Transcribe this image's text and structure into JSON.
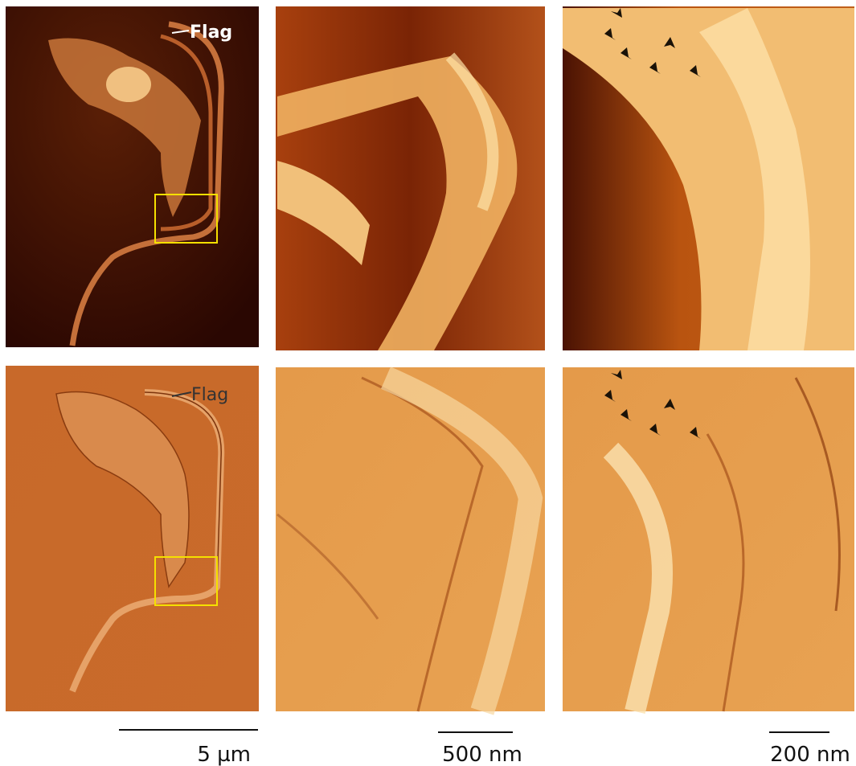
{
  "panels": [
    {
      "label": "Flag"
    },
    {
      "label": "Flag"
    }
  ],
  "scale_bars": [
    {
      "label": "5 µm"
    },
    {
      "label": "500 nm"
    },
    {
      "label": "200 nm"
    }
  ]
}
